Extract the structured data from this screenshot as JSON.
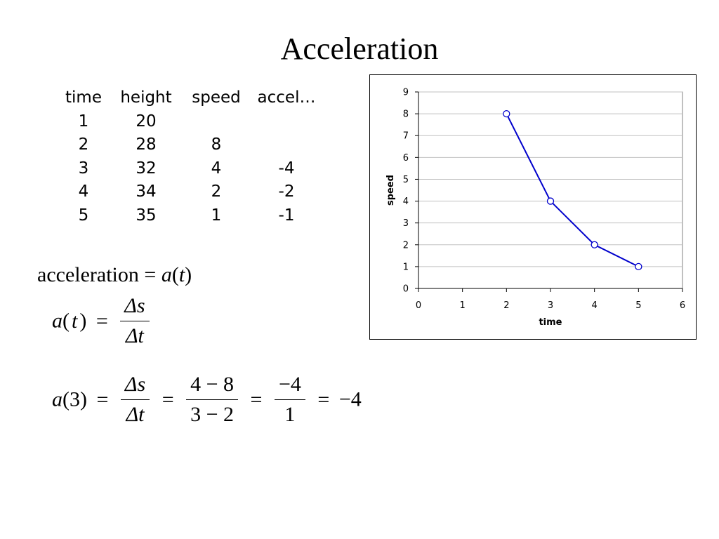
{
  "slide": {
    "title": "Acceleration"
  },
  "table": {
    "headers": [
      "time",
      "height",
      "speed",
      "accel…"
    ],
    "rows": [
      [
        "1",
        "20",
        "",
        ""
      ],
      [
        "2",
        "28",
        "8",
        ""
      ],
      [
        "3",
        "32",
        "4",
        "-4"
      ],
      [
        "4",
        "34",
        "2",
        "-2"
      ],
      [
        "5",
        "35",
        "1",
        "-1"
      ]
    ]
  },
  "formulas": {
    "definition": {
      "left": "acceleration = ",
      "func": "a",
      "paren_open": "(",
      "var": "t",
      "paren_close": ")"
    },
    "general": {
      "lhs_func": "a",
      "lhs_var": "t",
      "eq": "=",
      "num": "Δs",
      "den": "Δt"
    },
    "example": {
      "lhs_func": "a",
      "lhs_arg": "(3)",
      "eq": "=",
      "frac1_num": "Δs",
      "frac1_den": "Δt",
      "frac2_num": "4 − 8",
      "frac2_den": "3 − 2",
      "frac3_num": "−4",
      "frac3_den": "1",
      "result": "−4"
    }
  },
  "chart_data": {
    "type": "line",
    "xlabel": "time",
    "ylabel": "speed",
    "xlim": [
      0,
      6
    ],
    "ylim": [
      0,
      9
    ],
    "xticks": [
      0,
      1,
      2,
      3,
      4,
      5,
      6
    ],
    "yticks": [
      0,
      1,
      2,
      3,
      4,
      5,
      6,
      7,
      8,
      9
    ],
    "grid": "horizontal",
    "series": [
      {
        "x": [
          2,
          3,
          4,
          5
        ],
        "y": [
          8,
          4,
          2,
          1
        ],
        "color": "#0000cc",
        "marker": "open-circle"
      }
    ]
  }
}
